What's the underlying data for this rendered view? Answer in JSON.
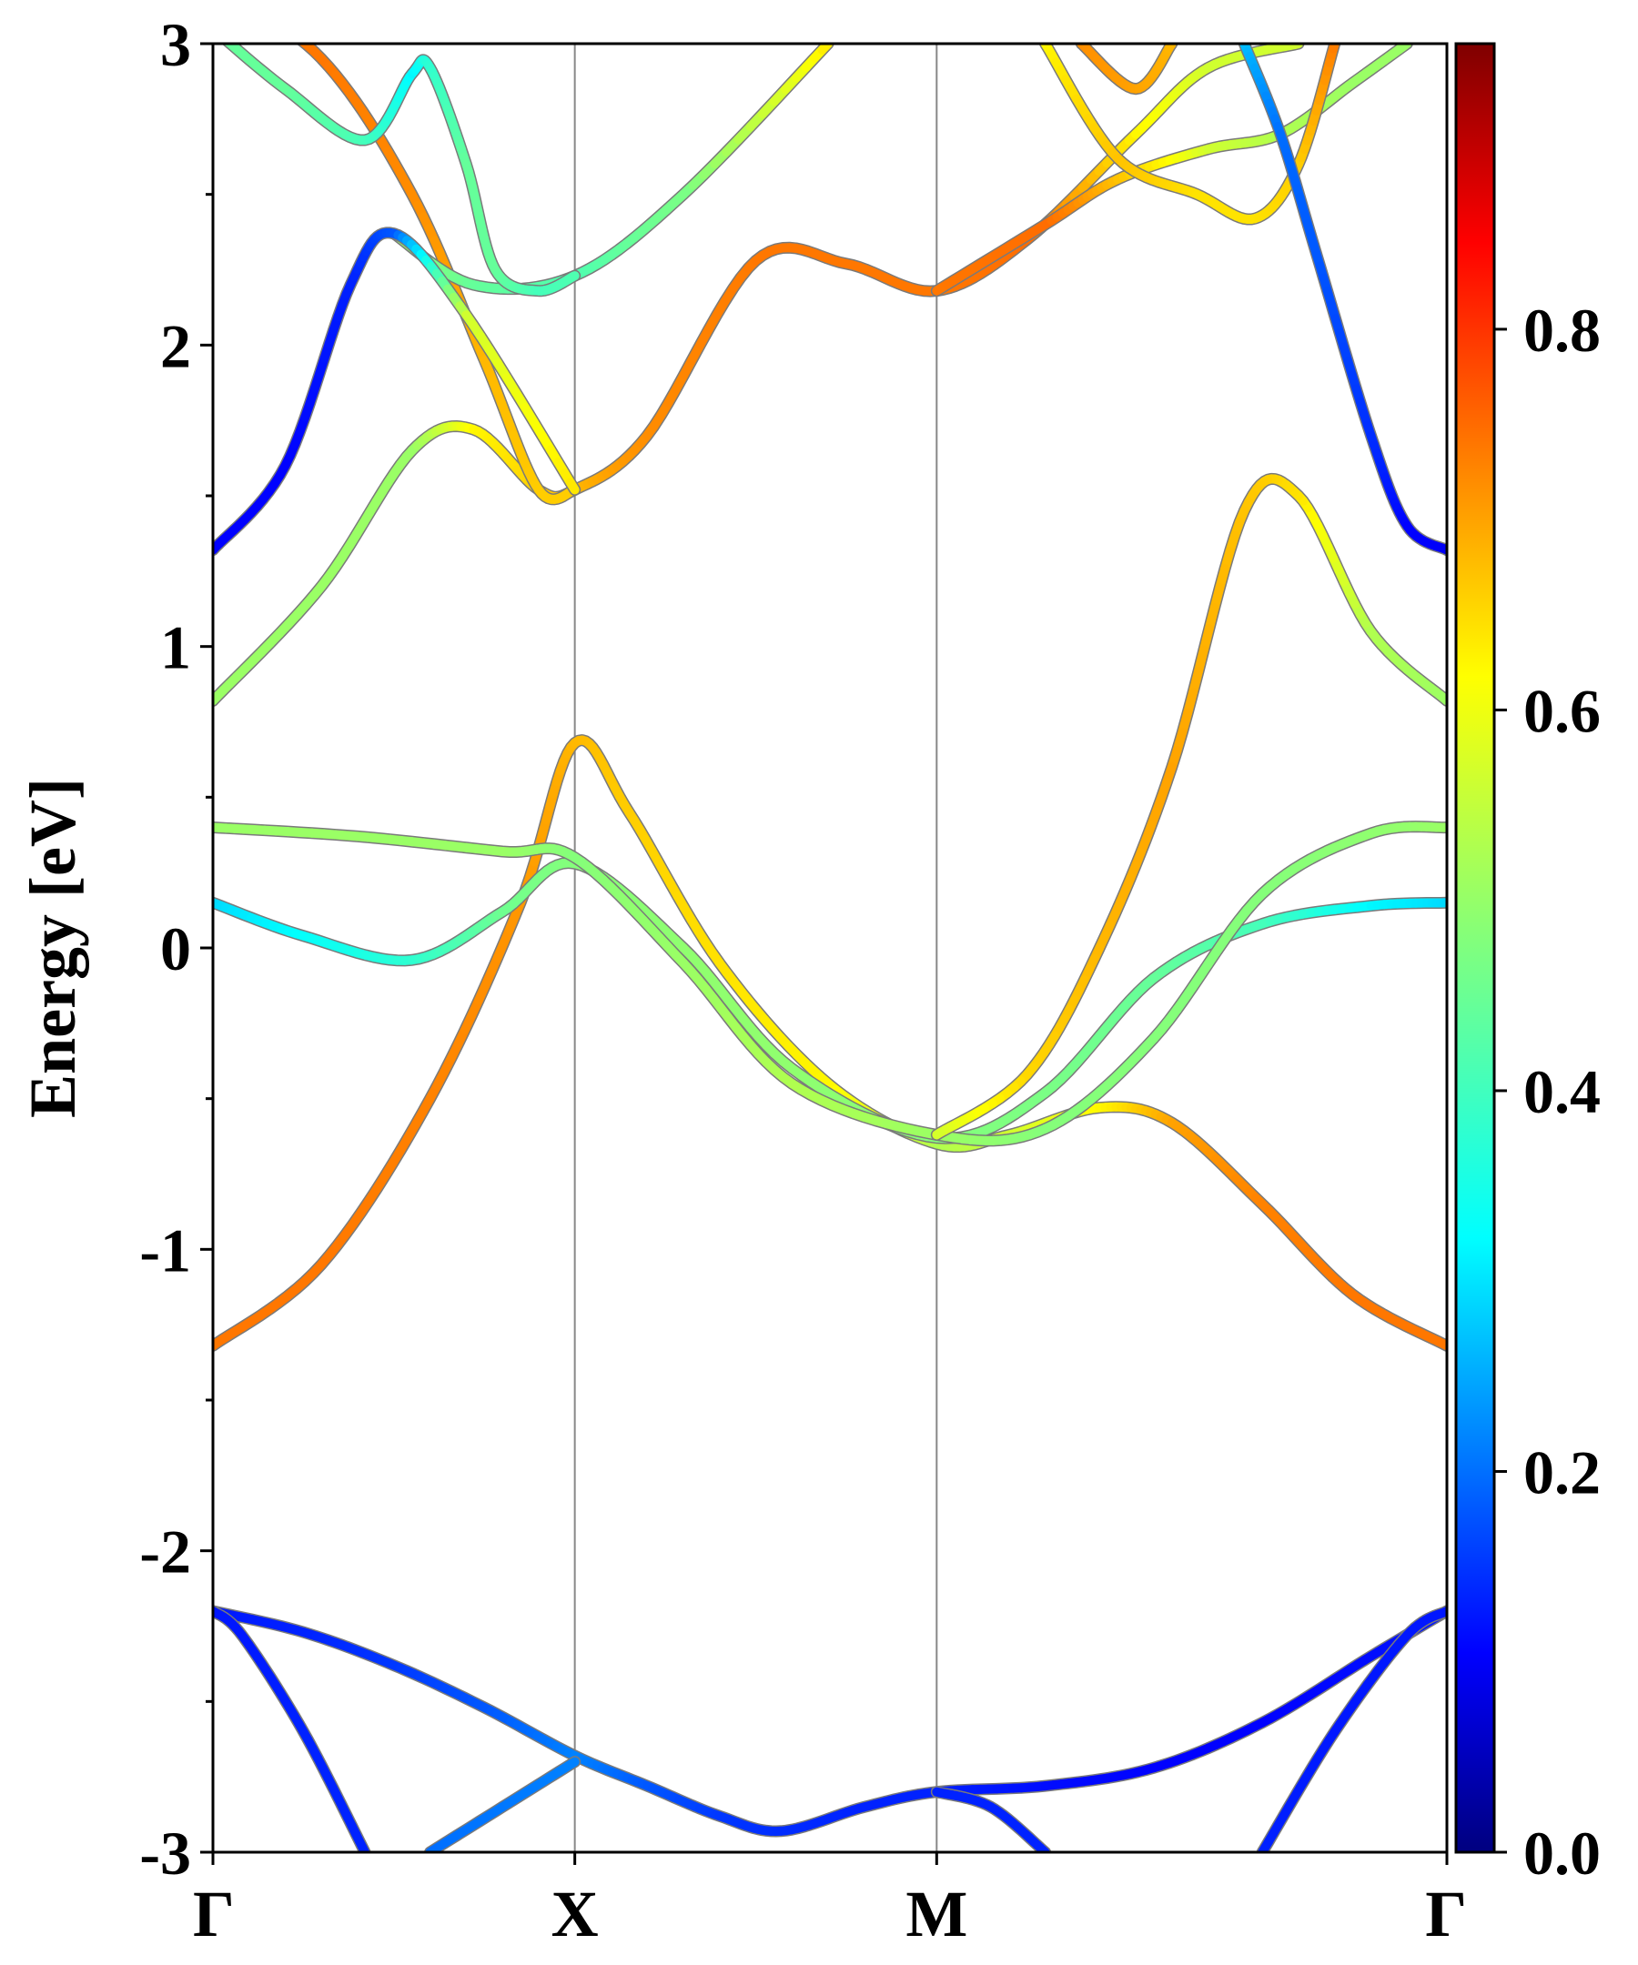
{
  "chart_data": {
    "type": "line",
    "title": "",
    "xlabel": "",
    "ylabel": "Energy [eV]",
    "ylim": [
      -3,
      3
    ],
    "yticks": [
      -3,
      -2,
      -1,
      0,
      1,
      2,
      3
    ],
    "ytick_labels": [
      "-3",
      "-2",
      "-1",
      "0",
      "1",
      "2",
      "3"
    ],
    "xlim": [
      0,
      3.41
    ],
    "kpoints": [
      {
        "label": "Γ",
        "x": 0
      },
      {
        "label": "X",
        "x": 1
      },
      {
        "label": "M",
        "x": 2
      },
      {
        "label": "Γ",
        "x": 3.41
      }
    ],
    "grid": false,
    "colorbar": {
      "colormap": "jet",
      "range": [
        0.0,
        0.95
      ],
      "ticks": [
        0.0,
        0.2,
        0.4,
        0.6,
        0.8
      ],
      "tick_labels": [
        "0.0",
        "0.2",
        "0.4",
        "0.6",
        "0.8"
      ]
    },
    "series": [
      {
        "points": [
          [
            0,
            -2.2
          ],
          [
            0.25,
            -2.27
          ],
          [
            0.5,
            -2.38
          ],
          [
            0.75,
            -2.52
          ],
          [
            1,
            -2.68
          ],
          [
            1.2,
            -2.78
          ],
          [
            1.4,
            -2.88
          ],
          [
            1.57,
            -2.93
          ],
          [
            1.8,
            -2.85
          ],
          [
            2,
            -2.8
          ],
          [
            2.3,
            -2.78
          ],
          [
            2.6,
            -2.72
          ],
          [
            2.9,
            -2.57
          ],
          [
            3.2,
            -2.35
          ],
          [
            3.41,
            -2.2
          ]
        ],
        "weights": [
          0.14,
          0.15,
          0.17,
          0.2,
          0.24,
          0.2,
          0.17,
          0.16,
          0.15,
          0.15,
          0.13,
          0.12,
          0.12,
          0.13,
          0.14
        ]
      },
      {
        "points": [
          [
            0,
            -2.2
          ],
          [
            0.08,
            -2.28
          ],
          [
            0.25,
            -2.6
          ],
          [
            0.42,
            -3.0
          ]
        ],
        "weights": [
          0.14,
          0.14,
          0.15,
          0.15
        ]
      },
      {
        "points": [
          [
            0.6,
            -3.0
          ],
          [
            0.8,
            -2.85
          ],
          [
            1,
            -2.7
          ]
        ],
        "weights": [
          0.22,
          0.23,
          0.24
        ]
      },
      {
        "points": [
          [
            2,
            -2.8
          ],
          [
            2.15,
            -2.85
          ],
          [
            2.3,
            -3.0
          ]
        ],
        "weights": [
          0.15,
          0.15,
          0.15
        ]
      },
      {
        "points": [
          [
            2.9,
            -3.0
          ],
          [
            3.1,
            -2.6
          ],
          [
            3.3,
            -2.28
          ],
          [
            3.41,
            -2.2
          ]
        ],
        "weights": [
          0.15,
          0.14,
          0.14,
          0.14
        ]
      },
      {
        "points": [
          [
            0,
            -1.32
          ],
          [
            0.3,
            -1.05
          ],
          [
            0.6,
            -0.5
          ],
          [
            0.85,
            0.15
          ],
          [
            1,
            0.68
          ],
          [
            1.15,
            0.45
          ],
          [
            1.4,
            -0.05
          ],
          [
            1.7,
            -0.45
          ],
          [
            2,
            -0.65
          ],
          [
            2.2,
            -0.62
          ],
          [
            2.45,
            -0.53
          ],
          [
            2.65,
            -0.58
          ],
          [
            2.9,
            -0.85
          ],
          [
            3.15,
            -1.15
          ],
          [
            3.41,
            -1.32
          ]
        ],
        "weights": [
          0.72,
          0.72,
          0.71,
          0.69,
          0.66,
          0.64,
          0.62,
          0.6,
          0.52,
          0.55,
          0.6,
          0.68,
          0.71,
          0.72,
          0.72
        ]
      },
      {
        "points": [
          [
            0,
            0.15
          ],
          [
            0.25,
            0.04
          ],
          [
            0.55,
            -0.04
          ],
          [
            0.8,
            0.12
          ],
          [
            1,
            0.28
          ],
          [
            1.3,
            0.0
          ],
          [
            1.6,
            -0.4
          ],
          [
            2,
            -0.63
          ],
          [
            2.3,
            -0.48
          ],
          [
            2.6,
            -0.1
          ],
          [
            2.9,
            0.08
          ],
          [
            3.2,
            0.14
          ],
          [
            3.41,
            0.15
          ]
        ],
        "weights": [
          0.32,
          0.36,
          0.4,
          0.46,
          0.48,
          0.49,
          0.49,
          0.48,
          0.47,
          0.45,
          0.42,
          0.35,
          0.32
        ]
      },
      {
        "points": [
          [
            0,
            0.4
          ],
          [
            0.4,
            0.37
          ],
          [
            0.8,
            0.32
          ],
          [
            1,
            0.3
          ],
          [
            1.3,
            -0.05
          ],
          [
            1.6,
            -0.45
          ],
          [
            2,
            -0.62
          ],
          [
            2.3,
            -0.6
          ],
          [
            2.6,
            -0.3
          ],
          [
            2.9,
            0.18
          ],
          [
            3.2,
            0.38
          ],
          [
            3.41,
            0.4
          ]
        ],
        "weights": [
          0.5,
          0.5,
          0.5,
          0.48,
          0.5,
          0.52,
          0.5,
          0.48,
          0.48,
          0.48,
          0.49,
          0.5
        ]
      },
      {
        "points": [
          [
            0,
            0.82
          ],
          [
            0.3,
            1.2
          ],
          [
            0.55,
            1.65
          ],
          [
            0.72,
            1.72
          ],
          [
            0.9,
            1.52
          ],
          [
            1,
            1.52
          ],
          [
            1.2,
            1.7
          ],
          [
            1.5,
            2.28
          ],
          [
            1.75,
            2.27
          ],
          [
            2,
            2.18
          ],
          [
            2.25,
            2.35
          ],
          [
            2.55,
            2.7
          ],
          [
            2.75,
            2.92
          ],
          [
            3.0,
            3.0
          ]
        ],
        "weights": [
          0.5,
          0.5,
          0.5,
          0.6,
          0.64,
          0.66,
          0.7,
          0.72,
          0.72,
          0.72,
          0.73,
          0.6,
          0.55,
          0.55
        ]
      },
      {
        "points": [
          [
            0,
            3.2
          ],
          [
            0.3,
            2.95
          ],
          [
            0.55,
            2.5
          ],
          [
            0.75,
            1.95
          ],
          [
            0.9,
            1.52
          ],
          [
            1,
            1.52
          ]
        ],
        "weights": [
          0.72,
          0.72,
          0.7,
          0.66,
          0.64,
          0.64
        ]
      },
      {
        "points": [
          [
            0.5,
            2.37
          ],
          [
            0.72,
            2.2
          ],
          [
            1,
            2.23
          ],
          [
            1.3,
            2.5
          ],
          [
            1.7,
            3.0
          ]
        ],
        "weights": [
          0.5,
          0.45,
          0.43,
          0.47,
          0.62
        ]
      },
      {
        "points": [
          [
            0,
            3.05
          ],
          [
            0.2,
            2.85
          ],
          [
            0.42,
            2.68
          ],
          [
            0.55,
            2.9
          ],
          [
            0.6,
            2.92
          ],
          [
            0.7,
            2.6
          ],
          [
            0.78,
            2.25
          ],
          [
            0.9,
            2.18
          ],
          [
            1,
            2.23
          ]
        ],
        "weights": [
          0.45,
          0.45,
          0.42,
          0.35,
          0.4,
          0.45,
          0.45,
          0.42,
          0.43
        ]
      },
      {
        "points": [
          [
            0,
            1.32
          ],
          [
            0.2,
            1.6
          ],
          [
            0.38,
            2.2
          ],
          [
            0.5,
            2.37
          ],
          [
            0.7,
            2.1
          ],
          [
            1,
            1.52
          ]
        ],
        "weights": [
          0.12,
          0.12,
          0.15,
          0.2,
          0.55,
          0.62
        ]
      },
      {
        "points": [
          [
            2,
            2.18
          ],
          [
            2.3,
            2.4
          ],
          [
            2.5,
            2.55
          ],
          [
            2.75,
            2.65
          ],
          [
            2.95,
            2.7
          ],
          [
            3.15,
            2.87
          ],
          [
            3.3,
            3.0
          ]
        ],
        "weights": [
          0.72,
          0.73,
          0.65,
          0.55,
          0.52,
          0.5,
          0.5
        ]
      },
      {
        "points": [
          [
            2.3,
            3.0
          ],
          [
            2.5,
            2.62
          ],
          [
            2.72,
            2.5
          ],
          [
            2.88,
            2.42
          ],
          [
            3.0,
            2.6
          ],
          [
            3.1,
            3.0
          ]
        ],
        "weights": [
          0.6,
          0.65,
          0.62,
          0.62,
          0.64,
          0.72
        ]
      },
      {
        "points": [
          [
            2.4,
            3.0
          ],
          [
            2.55,
            2.85
          ],
          [
            2.65,
            3.0
          ]
        ],
        "weights": [
          0.7,
          0.68,
          0.66
        ]
      },
      {
        "points": [
          [
            3.41,
            0.82
          ],
          [
            3.2,
            1.05
          ],
          [
            3.0,
            1.5
          ],
          [
            2.85,
            1.45
          ],
          [
            2.65,
            0.6
          ],
          [
            2.45,
            0.0
          ],
          [
            2.25,
            -0.42
          ],
          [
            2,
            -0.62
          ]
        ],
        "weights": [
          0.5,
          0.52,
          0.62,
          0.65,
          0.68,
          0.66,
          0.63,
          0.55
        ]
      },
      {
        "points": [
          [
            2.85,
            3.0
          ],
          [
            2.95,
            2.7
          ],
          [
            3.05,
            2.3
          ],
          [
            3.2,
            1.7
          ],
          [
            3.3,
            1.4
          ],
          [
            3.41,
            1.32
          ]
        ],
        "weights": [
          0.3,
          0.22,
          0.2,
          0.16,
          0.12,
          0.11
        ]
      }
    ]
  }
}
